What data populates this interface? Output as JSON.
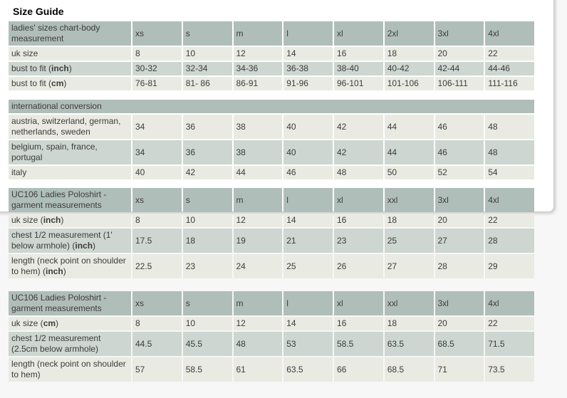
{
  "page": {
    "title": "Size Guide"
  },
  "colors": {
    "page_background": "#f7f7f7",
    "panel_background": "#ffffff",
    "panel_border": "#cbcbcb",
    "table_header_background": "#b0beb9",
    "row_light_background": "#e9eae2",
    "row_medium_background": "#cdd6d0",
    "text": "#3c3c3c",
    "title": "#000000"
  },
  "tables": [
    {
      "name": "ladies-sizes-body-measurement-table",
      "header": [
        "ladies' sizes chart-body measurement",
        "xs",
        "s",
        "m",
        "l",
        "xl",
        "2xl",
        "3xl",
        "4xl"
      ],
      "rows": [
        {
          "label": [
            [
              "t",
              "uk size"
            ]
          ],
          "values": [
            "8",
            "10",
            "12",
            "14",
            "16",
            "18",
            "20",
            "22"
          ]
        },
        {
          "label": [
            [
              "t",
              "bust to fit ("
            ],
            [
              "b",
              "inch"
            ],
            [
              "t",
              ")"
            ]
          ],
          "values": [
            "30-32",
            "32-34",
            "34-36",
            "36-38",
            "38-40",
            "40-42",
            "42-44",
            "44-46"
          ]
        },
        {
          "label": [
            [
              "t",
              "bust to fit ("
            ],
            [
              "b",
              "cm"
            ],
            [
              "t",
              ")"
            ]
          ],
          "values": [
            "76-81",
            "81- 86",
            "86-91",
            "91-96",
            "96-101",
            "101-106",
            "106-111",
            "111-116"
          ]
        }
      ]
    },
    {
      "name": "international-conversion-table",
      "header_span": "international conversion",
      "rows": [
        {
          "label": [
            [
              "t",
              "austria, switzerland, german, netherlands, sweden"
            ]
          ],
          "values": [
            "34",
            "36",
            "38",
            "40",
            "42",
            "44",
            "46",
            "48"
          ]
        },
        {
          "label": [
            [
              "t",
              "belgium, spain, france, portugal"
            ]
          ],
          "values": [
            "34",
            "36",
            "38",
            "40",
            "42",
            "44",
            "46",
            "48"
          ]
        },
        {
          "label": [
            [
              "t",
              "italy"
            ]
          ],
          "values": [
            "40",
            "42",
            "44",
            "46",
            "48",
            "50",
            "52",
            "54"
          ]
        }
      ]
    },
    {
      "name": "uc106-garment-measurements-inch-table",
      "header": [
        "UC106 Ladies Poloshirt - garment measurements",
        "xs",
        "s",
        "m",
        "l",
        "xl",
        "xxl",
        "3xl",
        "4xl"
      ],
      "rows": [
        {
          "label": [
            [
              "t",
              "uk size ("
            ],
            [
              "b",
              "inch"
            ],
            [
              "t",
              ")"
            ]
          ],
          "values": [
            "8",
            "10",
            "12",
            "14",
            "16",
            "18",
            "20",
            "22"
          ]
        },
        {
          "label": [
            [
              "t",
              "chest 1/2 measurement (1' below armhole) ("
            ],
            [
              "b",
              "inch"
            ],
            [
              "t",
              ")"
            ]
          ],
          "values": [
            "17.5",
            "18",
            "19",
            "21",
            "23",
            "25",
            "27",
            "28"
          ]
        },
        {
          "label": [
            [
              "t",
              "length (neck point on shoulder to hem) ("
            ],
            [
              "b",
              "inch"
            ],
            [
              "t",
              ")"
            ]
          ],
          "values": [
            "22.5",
            "23",
            "24",
            "25",
            "26",
            "27",
            "28",
            "29"
          ]
        }
      ]
    },
    {
      "name": "uc106-garment-measurements-cm-table",
      "header": [
        "UC106 Ladies Poloshirt - garment measurements",
        "xs",
        "s",
        "m",
        "l",
        "xl",
        "xxl",
        "3xl",
        "4xl"
      ],
      "rows": [
        {
          "label": [
            [
              "t",
              "uk size ("
            ],
            [
              "b",
              "cm"
            ],
            [
              "t",
              ")"
            ]
          ],
          "values": [
            "8",
            "10",
            "12",
            "14",
            "16",
            "18",
            "20",
            "22"
          ]
        },
        {
          "label": [
            [
              "t",
              "chest 1/2 measurement (2.5cm below armhole)"
            ]
          ],
          "values": [
            "44.5",
            "45.5",
            "48",
            "53",
            "58.5",
            "63.5",
            "68.5",
            "71.5"
          ]
        },
        {
          "label": [
            [
              "t",
              "length (neck point on shoulder to hem)"
            ]
          ],
          "values": [
            "57",
            "58.5",
            "61",
            "63.5",
            "66",
            "68.5",
            "71",
            "73.5"
          ]
        }
      ]
    }
  ]
}
